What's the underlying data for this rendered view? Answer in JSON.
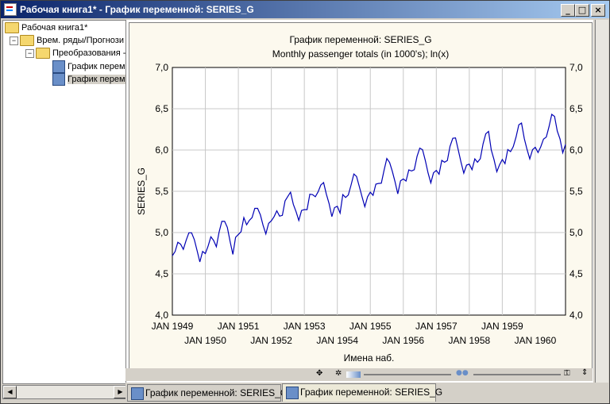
{
  "window": {
    "title": "Рабочая книга1* - График переменной: SERIES_G",
    "min": "_",
    "max": "□",
    "close": "×"
  },
  "tree": {
    "root": "Рабочая книга1*",
    "node1": "Врем. ряды/Прогнози",
    "node2": "Преобразования -",
    "leaf1": "График перем",
    "leaf2": "График перем"
  },
  "tabs": [
    {
      "label": "График переменной: SERIES_G"
    },
    {
      "label": "График переменной: SERIES_G"
    }
  ],
  "colors": {
    "line": "#0000b4",
    "plot_bg": "#ffffff",
    "chart_bg": "#fcf9ee",
    "grid": "#c8c8c8"
  },
  "chart_data": {
    "type": "line",
    "title": "График переменной: SERIES_G",
    "subtitle": "Monthly passenger totals (in 1000's); ln(x)",
    "xlabel": "Имена наб.",
    "ylabel": "SERIES_G",
    "ylim": [
      4.0,
      7.0
    ],
    "yticks": [
      "4,0",
      "4,5",
      "5,0",
      "5,5",
      "6,0",
      "6,5",
      "7,0"
    ],
    "xticks_top": [
      "JAN 1949",
      "JAN 1951",
      "JAN 1953",
      "JAN 1955",
      "JAN 1957",
      "JAN 1959"
    ],
    "xticks_bottom": [
      "JAN 1950",
      "JAN 1952",
      "JAN 1954",
      "JAN 1956",
      "JAN 1958",
      "JAN 1960"
    ],
    "grid": true,
    "x_start": "JAN 1949",
    "x_frequency": "monthly",
    "series": [
      {
        "values": [
          4.718,
          4.771,
          4.883,
          4.86,
          4.796,
          4.905,
          4.997,
          4.997,
          4.913,
          4.779,
          4.644,
          4.771,
          4.745,
          4.836,
          4.949,
          4.905,
          4.828,
          5.004,
          5.136,
          5.136,
          5.063,
          4.891,
          4.736,
          4.942,
          4.977,
          5.011,
          5.182,
          5.094,
          5.147,
          5.182,
          5.293,
          5.293,
          5.215,
          5.088,
          4.984,
          5.112,
          5.142,
          5.193,
          5.263,
          5.199,
          5.209,
          5.384,
          5.438,
          5.489,
          5.342,
          5.252,
          5.147,
          5.268,
          5.278,
          5.278,
          5.464,
          5.46,
          5.434,
          5.493,
          5.576,
          5.606,
          5.468,
          5.352,
          5.193,
          5.303,
          5.318,
          5.236,
          5.46,
          5.425,
          5.455,
          5.576,
          5.71,
          5.68,
          5.557,
          5.434,
          5.313,
          5.434,
          5.489,
          5.451,
          5.587,
          5.595,
          5.598,
          5.753,
          5.897,
          5.849,
          5.743,
          5.613,
          5.468,
          5.628,
          5.649,
          5.624,
          5.759,
          5.746,
          5.762,
          5.924,
          6.023,
          6.004,
          5.872,
          5.724,
          5.602,
          5.724,
          5.753,
          5.707,
          5.875,
          5.852,
          5.872,
          6.045,
          6.142,
          6.146,
          5.999,
          5.849,
          5.72,
          5.817,
          5.829,
          5.762,
          5.892,
          5.852,
          5.894,
          6.075,
          6.196,
          6.225,
          6.001,
          5.883,
          5.737,
          5.82,
          5.886,
          5.835,
          6.006,
          5.981,
          6.04,
          6.157,
          6.306,
          6.327,
          6.138,
          6.009,
          5.892,
          6.004,
          6.033,
          5.969,
          6.038,
          6.133,
          6.157,
          6.282,
          6.433,
          6.407,
          6.23,
          6.133,
          5.966,
          6.068
        ]
      }
    ]
  }
}
